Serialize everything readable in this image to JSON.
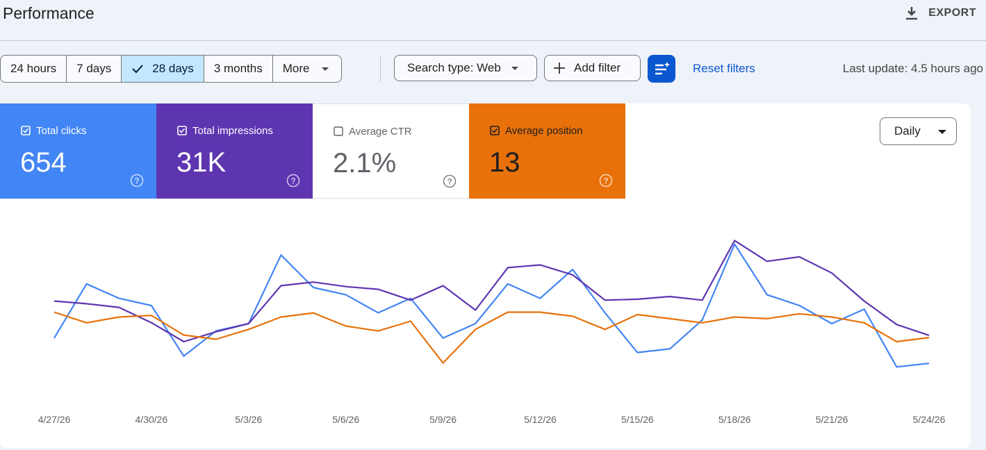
{
  "header": {
    "title": "Performance",
    "export": "EXPORT"
  },
  "filters": {
    "ranges": [
      "24 hours",
      "7 days",
      "28 days",
      "3 months",
      "More"
    ],
    "selected_range": 2,
    "search_type": "Search type: Web",
    "add_filter": "Add filter",
    "reset": "Reset filters",
    "last_update": "Last update: 4.5 hours ago"
  },
  "metrics": [
    {
      "label": "Total clicks",
      "value": "654",
      "checked": true,
      "color": "#4285f4"
    },
    {
      "label": "Total impressions",
      "value": "31K",
      "checked": true,
      "color": "#5e35b1"
    },
    {
      "label": "Average CTR",
      "value": "2.1%",
      "checked": false,
      "color": "#ffffff"
    },
    {
      "label": "Average position",
      "value": "13",
      "checked": true,
      "color": "#e8710a"
    }
  ],
  "granularity": "Daily",
  "chart_data": {
    "type": "line",
    "categories": [
      "4/27/26",
      null,
      null,
      "4/30/26",
      null,
      null,
      "5/3/26",
      null,
      null,
      "5/6/26",
      null,
      null,
      "5/9/26",
      null,
      null,
      "5/12/26",
      null,
      null,
      "5/15/26",
      null,
      null,
      "5/18/26",
      null,
      null,
      "5/21/26",
      null,
      null,
      "5/24/26"
    ],
    "series": [
      {
        "name": "Total clicks",
        "color": "#4285f4",
        "ylim": [
          0,
          50
        ],
        "values": [
          16,
          31,
          27,
          25,
          11,
          18,
          20,
          39,
          30,
          28,
          23,
          27,
          16,
          20,
          31,
          27,
          35,
          23,
          12,
          13,
          21,
          42,
          28,
          25,
          20,
          24,
          8,
          9
        ]
      },
      {
        "name": "Total impressions",
        "color": "#5e35b1",
        "ylim": [
          0,
          2000
        ],
        "values": [
          1050,
          1020,
          980,
          810,
          600,
          710,
          800,
          1220,
          1260,
          1210,
          1180,
          1060,
          1220,
          950,
          1420,
          1450,
          1340,
          1060,
          1070,
          1100,
          1060,
          1720,
          1490,
          1540,
          1360,
          1050,
          790,
          670
        ]
      },
      {
        "name": "Average position",
        "color": "#e8710a",
        "ylim": [
          22,
          0
        ],
        "values": [
          11.8,
          13.1,
          12.4,
          12.2,
          14.6,
          15.1,
          13.9,
          12.4,
          11.9,
          13.5,
          14.1,
          12.9,
          18,
          13.9,
          11.8,
          11.8,
          12.3,
          13.9,
          12.1,
          12.6,
          13.1,
          12.4,
          12.6,
          12,
          12.4,
          13.1,
          15.4,
          14.9
        ]
      }
    ]
  }
}
